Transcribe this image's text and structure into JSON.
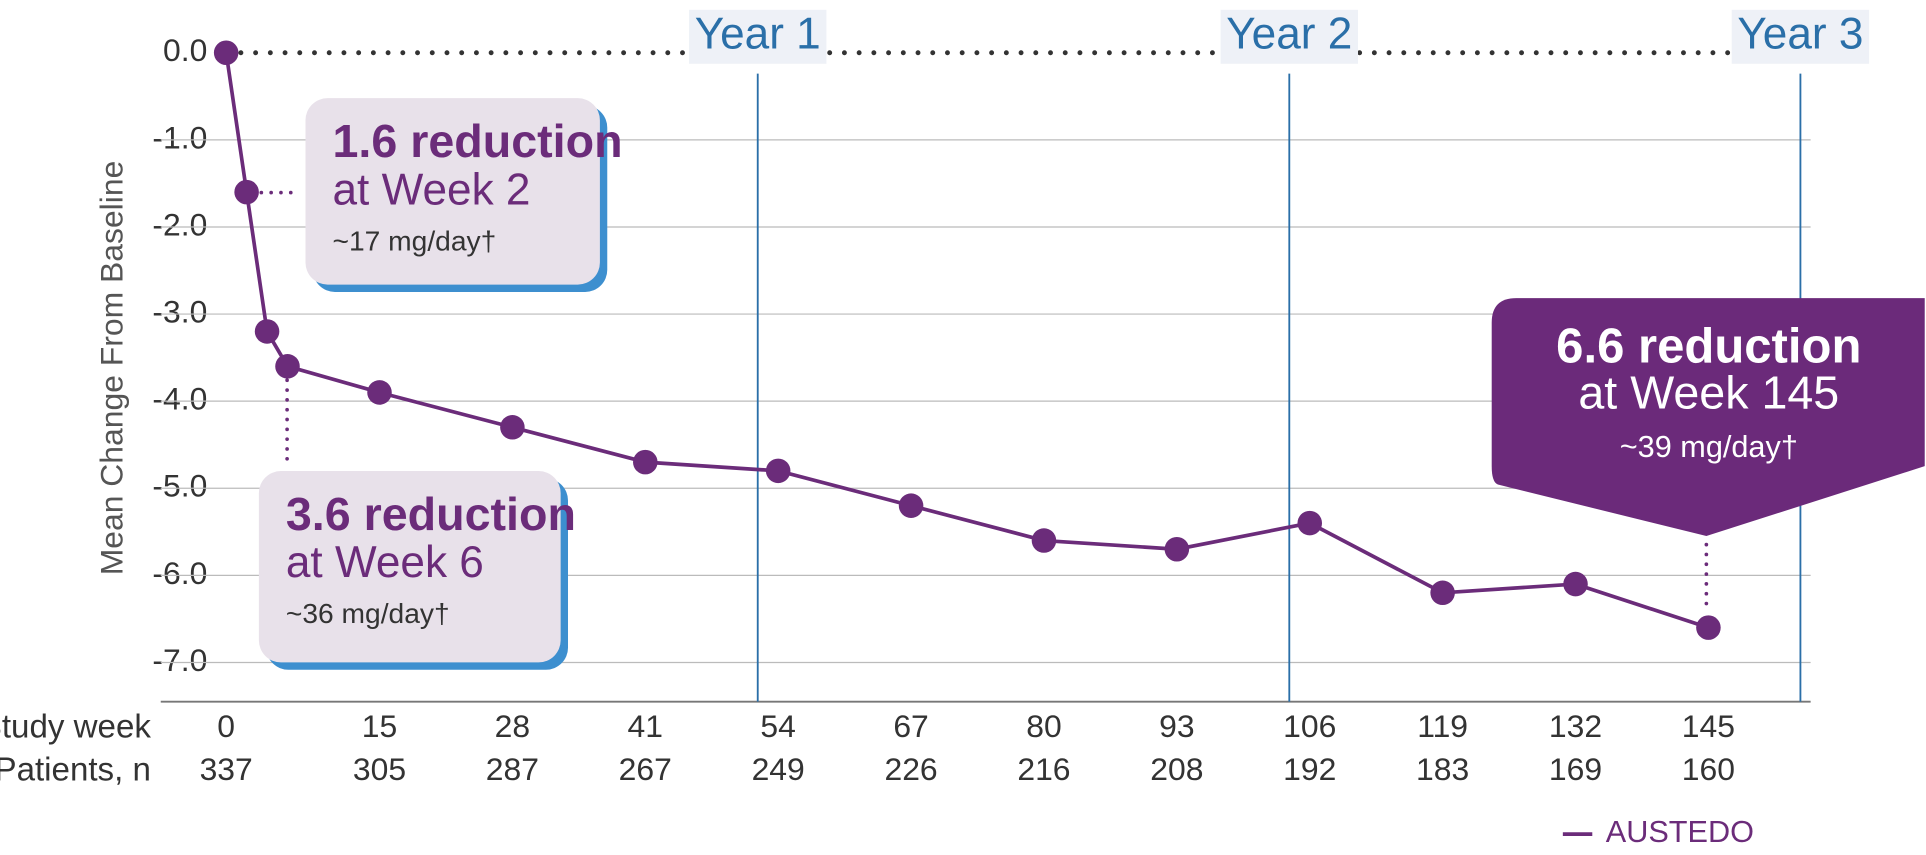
{
  "chart_data": {
    "type": "line",
    "ylabel": "Mean Change From Baseline",
    "xlabel": "Study week",
    "x": [
      0,
      2,
      4,
      6,
      15,
      28,
      41,
      54,
      67,
      80,
      93,
      106,
      119,
      132,
      145
    ],
    "series": [
      {
        "name": "AUSTEDO",
        "color": "#6b2c7a",
        "values": [
          0,
          -1.6,
          -3.2,
          -3.6,
          -3.9,
          -4.3,
          -4.7,
          -4.8,
          -5.2,
          -5.6,
          -5.7,
          -5.4,
          -6.2,
          -6.1,
          -6.6
        ]
      }
    ],
    "xlim": [
      -6.4,
      155
    ],
    "ylim": [
      -7.45,
      0
    ],
    "xticks": [
      0,
      15,
      28,
      41,
      54,
      67,
      80,
      93,
      106,
      119,
      132,
      145
    ],
    "yticks": [
      {
        "value": 0,
        "label": "0.0"
      },
      {
        "value": -1,
        "label": "-1.0"
      },
      {
        "value": -2,
        "label": "-2.0"
      },
      {
        "value": -3,
        "label": "-3.0"
      },
      {
        "value": -4,
        "label": "-4.0"
      },
      {
        "value": -5,
        "label": "-5.0"
      },
      {
        "value": -6,
        "label": "-6.0"
      },
      {
        "value": -7,
        "label": "-7.0"
      }
    ],
    "patients": {
      "label": "Patients, n",
      "values": [
        337,
        305,
        287,
        267,
        249,
        226,
        216,
        208,
        192,
        183,
        169,
        160
      ]
    },
    "year_lines": [
      {
        "value": 52,
        "label": "Year 1"
      },
      {
        "value": 104,
        "label": "Year 2"
      },
      {
        "value": 154,
        "label": "Year 3"
      }
    ],
    "grid": true,
    "annotations": [
      {
        "lines": [
          "1.6 reduction",
          "at Week 2",
          "~17 mg/day†"
        ]
      },
      {
        "lines": [
          "3.6 reduction",
          "at Week 6",
          "~36 mg/day†"
        ]
      },
      {
        "lines": [
          "6.6 reduction",
          "at Week 145",
          "~39 mg/day†"
        ]
      }
    ]
  }
}
